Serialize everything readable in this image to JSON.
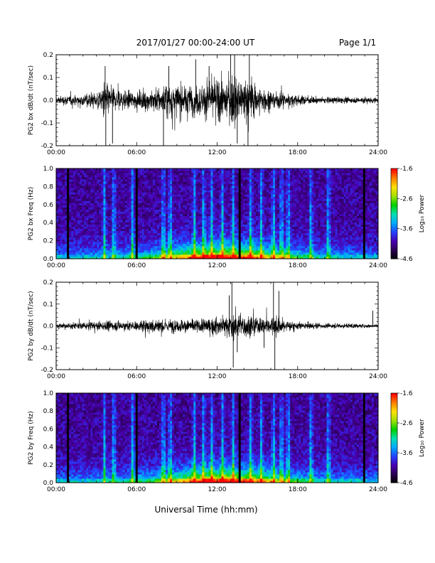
{
  "header": {
    "title": "2017/01/27  00:00-24:00 UT",
    "page": "Page 1/1"
  },
  "xaxis": {
    "label": "Universal Time (hh:mm)",
    "ticks": [
      "00:00",
      "06:00",
      "12:00",
      "18:00",
      "24:00"
    ]
  },
  "colorbar": {
    "label": "Log₁₀ Power",
    "ticks": [
      "-1.6",
      "-2.6",
      "-3.6",
      "-4.6"
    ],
    "range": [
      -4.6,
      -1.6
    ],
    "colors": [
      "#000000",
      "#2a004f",
      "#4a00b0",
      "#2440ff",
      "#00a8ff",
      "#00e0b0",
      "#00d000",
      "#a0e000",
      "#ffe000",
      "#ff8000",
      "#ff0000"
    ]
  },
  "chart_data": [
    {
      "type": "line",
      "title": "",
      "ylabel": "PG2 bx dB/dt (nT/sec)",
      "xlim": [
        0,
        24
      ],
      "ylim": [
        -0.2,
        0.2
      ],
      "yticks": [
        "0.2",
        "0.1",
        "0.0",
        "-0.1",
        "-0.2"
      ],
      "series": [
        {
          "x": [
            0,
            1,
            2,
            3,
            3.7,
            4,
            5,
            6,
            7,
            8,
            8.5,
            9,
            10,
            11,
            11.5,
            12,
            12.5,
            13,
            13.3,
            14,
            14.3,
            15,
            15.5,
            16,
            17,
            18,
            19,
            20,
            21,
            22,
            23,
            24
          ],
          "envelope": [
            0.03,
            0.04,
            0.05,
            0.07,
            0.15,
            0.1,
            0.08,
            0.06,
            0.09,
            0.12,
            0.15,
            0.12,
            0.12,
            0.13,
            0.15,
            0.18,
            0.14,
            0.2,
            0.2,
            0.16,
            0.2,
            0.12,
            0.1,
            0.08,
            0.06,
            0.04,
            0.03,
            0.025,
            0.025,
            0.02,
            0.03,
            0.02
          ],
          "spikes": [
            [
              3.7,
              -0.21
            ],
            [
              3.65,
              0.15
            ],
            [
              4.2,
              -0.19
            ],
            [
              8.0,
              -0.21
            ],
            [
              8.4,
              0.15
            ],
            [
              10.4,
              0.18
            ],
            [
              13.0,
              0.2
            ],
            [
              13.3,
              0.2
            ],
            [
              14.4,
              0.2
            ],
            [
              14.3,
              -0.21
            ],
            [
              13.5,
              -0.19
            ],
            [
              11.4,
              0.15
            ]
          ]
        }
      ]
    },
    {
      "type": "heatmap",
      "title": "",
      "ylabel": "PG2 bx Freq (Hz)",
      "xlim": [
        0,
        24
      ],
      "ylim": [
        0,
        1.0
      ],
      "yticks": [
        "1.0",
        "0.8",
        "0.6",
        "0.4",
        "0.2",
        "0.0"
      ],
      "dark_lines": [
        0.85,
        6.0,
        13.7,
        22.9
      ],
      "bright_bands": [
        3.6,
        4.3,
        5.7,
        8.0,
        8.5,
        10.3,
        11.0,
        11.6,
        12.4,
        13.2,
        14.5,
        15.3,
        16.2,
        16.8,
        17.3,
        19.0,
        20.3
      ]
    },
    {
      "type": "line",
      "title": "",
      "ylabel": "PG2 by dB/dt (nT/sec)",
      "xlim": [
        0,
        24
      ],
      "ylim": [
        -0.2,
        0.2
      ],
      "yticks": [
        "0.2",
        "0.1",
        "0.0",
        "-0.1",
        "-0.2"
      ],
      "series": [
        {
          "x": [
            0,
            1,
            2,
            3,
            4,
            5,
            6,
            7,
            8,
            9,
            10,
            11,
            12,
            12.5,
            13,
            13.3,
            14,
            14.5,
            15,
            16,
            16.3,
            17,
            18,
            19,
            20,
            21,
            22,
            23,
            24
          ],
          "envelope": [
            0.02,
            0.025,
            0.03,
            0.035,
            0.04,
            0.04,
            0.04,
            0.06,
            0.06,
            0.05,
            0.06,
            0.06,
            0.07,
            0.08,
            0.1,
            0.12,
            0.1,
            0.08,
            0.07,
            0.07,
            0.1,
            0.05,
            0.03,
            0.025,
            0.02,
            0.02,
            0.02,
            0.015,
            0.015
          ],
          "spikes": [
            [
              13.1,
              0.2
            ],
            [
              13.2,
              -0.19
            ],
            [
              16.2,
              0.2
            ],
            [
              16.3,
              -0.21
            ],
            [
              16.6,
              0.16
            ],
            [
              12.9,
              0.14
            ],
            [
              13.5,
              -0.12
            ],
            [
              15.5,
              -0.1
            ],
            [
              23.6,
              0.07
            ]
          ]
        }
      ]
    },
    {
      "type": "heatmap",
      "title": "",
      "ylabel": "PG2 by Freq (Hz)",
      "xlim": [
        0,
        24
      ],
      "ylim": [
        0,
        1.0
      ],
      "yticks": [
        "1.0",
        "0.8",
        "0.6",
        "0.4",
        "0.2",
        "0.0"
      ],
      "dark_lines": [
        0.85,
        6.0,
        13.7,
        22.9
      ],
      "bright_bands": [
        3.6,
        4.3,
        5.7,
        8.0,
        8.5,
        10.3,
        11.0,
        11.6,
        12.4,
        13.2,
        14.5,
        15.3,
        16.2,
        16.8,
        17.3,
        19.0,
        20.3
      ]
    }
  ]
}
